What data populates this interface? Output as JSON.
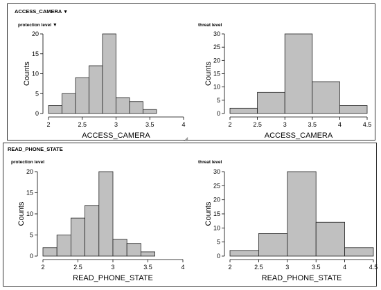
{
  "panels": [
    {
      "title": "ACCESS_CAMERA",
      "title_icon": "dropdown-triangle-icon",
      "left_subtitle": "protection level",
      "left_subtitle_icon": "dropdown-triangle-icon",
      "right_subtitle": "threat level"
    },
    {
      "title": "READ_PHONE_STATE",
      "left_subtitle": "protection level",
      "right_subtitle": "threat level"
    }
  ],
  "dropdown_glyph": "▼",
  "colors": {
    "bar_fill": "#c0c0c0",
    "bar_stroke": "#222222",
    "panel_border": "#333333"
  },
  "chart_data": [
    {
      "type": "bar",
      "subtype": "histogram",
      "panel": "ACCESS_CAMERA",
      "title": "protection level",
      "xlabel": "ACCESS_CAMERA",
      "ylabel": "Counts",
      "xlim": [
        2,
        4
      ],
      "ylim": [
        0,
        20
      ],
      "xticks": [
        2,
        2.5,
        3,
        3.5,
        4
      ],
      "xtick_labels": [
        "2",
        "2.5",
        "3",
        "3.5",
        "4"
      ],
      "yticks": [
        0,
        5,
        10,
        15,
        20
      ],
      "bin_edges": [
        2.0,
        2.2,
        2.4,
        2.6,
        2.8,
        3.0,
        3.2,
        3.4,
        3.6,
        3.8
      ],
      "values": [
        2,
        5,
        9,
        12,
        20,
        4,
        3,
        1,
        0
      ]
    },
    {
      "type": "bar",
      "subtype": "histogram",
      "panel": "ACCESS_CAMERA",
      "title": "threat level",
      "xlabel": "ACCESS_CAMERA",
      "ylabel": "Counts",
      "xlim": [
        2,
        4.5
      ],
      "ylim": [
        0,
        30
      ],
      "xticks": [
        2,
        2.5,
        3,
        3.5,
        4,
        4.5
      ],
      "xtick_labels": [
        "2",
        "2.5",
        "3",
        "3.5",
        "4",
        "4.5"
      ],
      "yticks": [
        0,
        5,
        10,
        15,
        20,
        25,
        30
      ],
      "bin_edges": [
        2.0,
        2.5,
        3.0,
        3.5,
        4.0,
        4.5
      ],
      "values": [
        2,
        8,
        30,
        12,
        3
      ]
    },
    {
      "type": "bar",
      "subtype": "histogram",
      "panel": "READ_PHONE_STATE",
      "title": "protection level",
      "xlabel": "READ_PHONE_STATE",
      "ylabel": "Counts",
      "xlim": [
        2,
        4
      ],
      "ylim": [
        0,
        20
      ],
      "xticks": [
        2,
        2.5,
        3,
        3.5,
        4
      ],
      "xtick_labels": [
        "2",
        "2.5",
        "3",
        "3.5",
        "4"
      ],
      "yticks": [
        0,
        5,
        10,
        15,
        20
      ],
      "bin_edges": [
        2.0,
        2.2,
        2.4,
        2.6,
        2.8,
        3.0,
        3.2,
        3.4,
        3.6,
        3.8
      ],
      "values": [
        2,
        5,
        9,
        12,
        20,
        4,
        3,
        1,
        0
      ]
    },
    {
      "type": "bar",
      "subtype": "histogram",
      "panel": "READ_PHONE_STATE",
      "title": "threat level",
      "xlabel": "READ_PHONE_STATE",
      "ylabel": "Counts",
      "xlim": [
        2,
        4.5
      ],
      "ylim": [
        0,
        30
      ],
      "xticks": [
        2,
        2.5,
        3,
        3.5,
        4,
        4.5
      ],
      "xtick_labels": [
        "2",
        "2.5",
        "3",
        "3.5",
        "4",
        "4.5"
      ],
      "yticks": [
        0,
        5,
        10,
        15,
        20,
        25,
        30
      ],
      "bin_edges": [
        2.0,
        2.5,
        3.0,
        3.5,
        4.0,
        4.5
      ],
      "values": [
        2,
        8,
        30,
        12,
        3
      ]
    }
  ]
}
